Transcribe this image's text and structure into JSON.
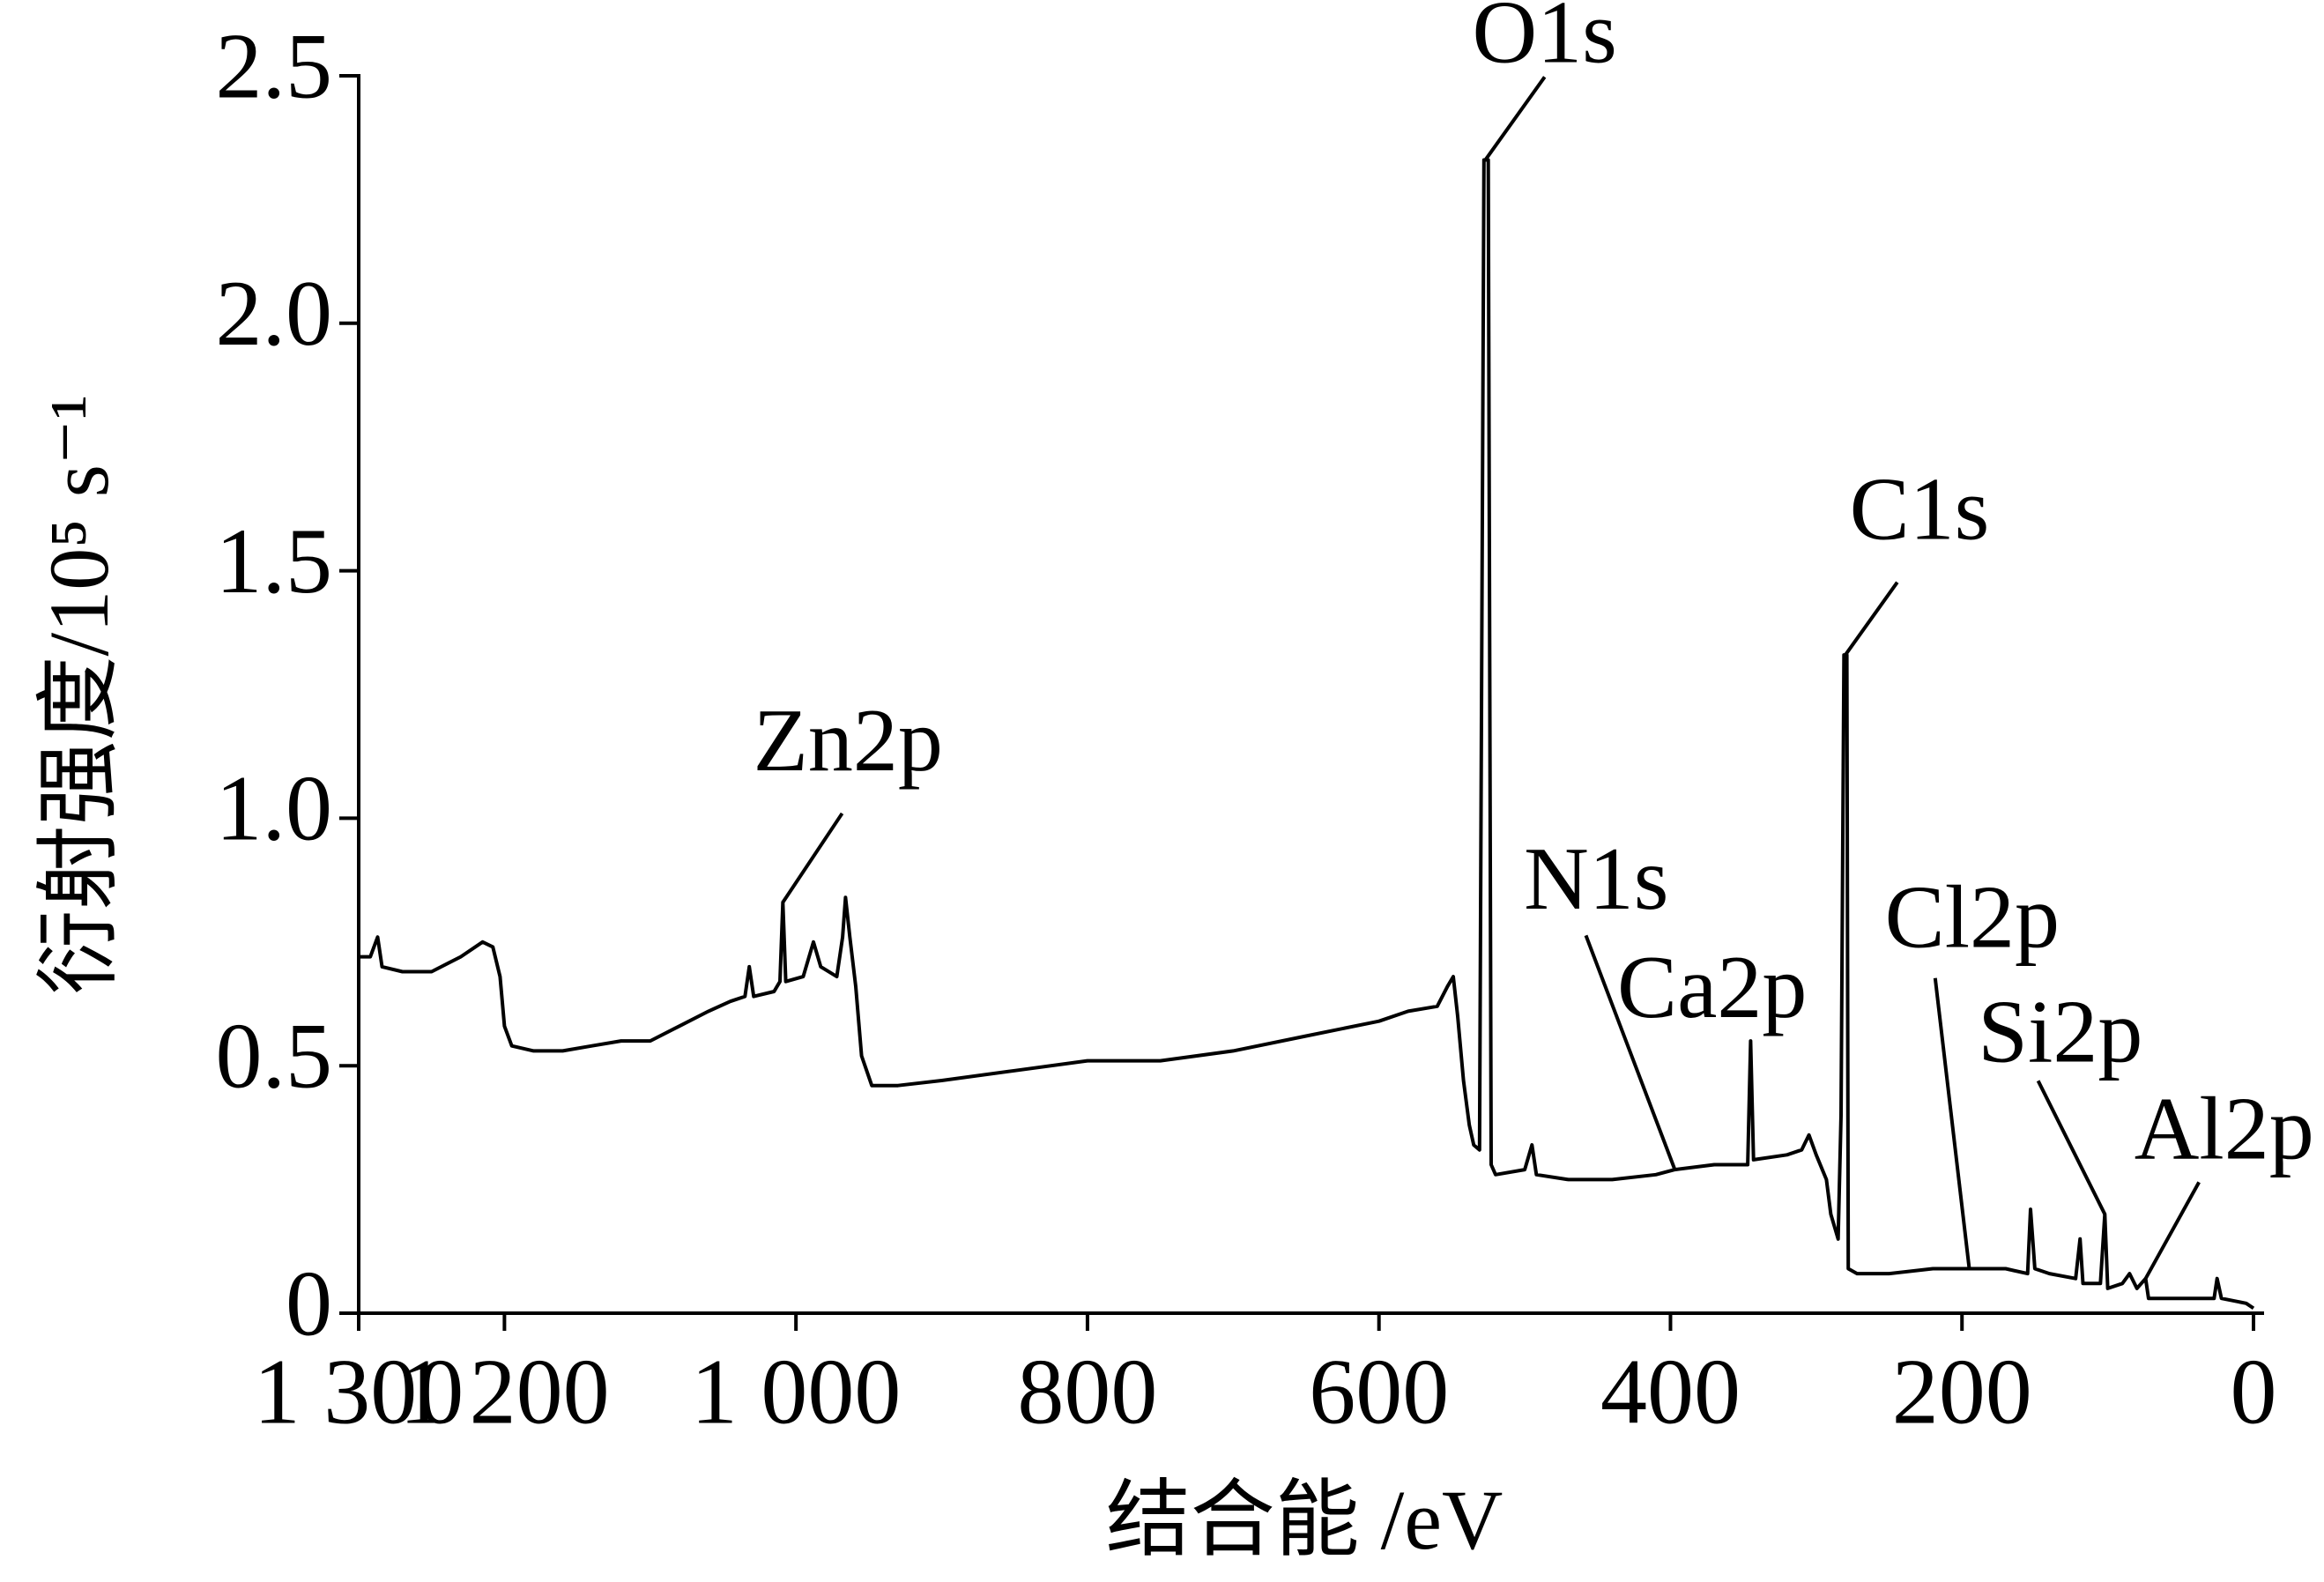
{
  "chart_data": {
    "type": "line",
    "xlabel": "结合能 /eV",
    "ylabel": "衍射强度/10⁵ s⁻¹",
    "x": [
      1300,
      1292,
      1287,
      1284,
      1270,
      1250,
      1230,
      1215,
      1208,
      1203,
      1200,
      1195,
      1180,
      1160,
      1140,
      1120,
      1100,
      1080,
      1060,
      1045,
      1035,
      1032,
      1029,
      1015,
      1011,
      1009,
      1007,
      995,
      988,
      983,
      972,
      968,
      966,
      963,
      959,
      955,
      948,
      930,
      900,
      850,
      800,
      750,
      700,
      650,
      600,
      580,
      560,
      553,
      549,
      546,
      542,
      538,
      535,
      531,
      528,
      525,
      523,
      520,
      500,
      495,
      492,
      470,
      440,
      410,
      397,
      370,
      347,
      345,
      343,
      320,
      310,
      305,
      300,
      293,
      290,
      285,
      283,
      281,
      279,
      278,
      272,
      250,
      220,
      195,
      170,
      155,
      153,
      150,
      140,
      122,
      119,
      117,
      105,
      102,
      100,
      90,
      85,
      80,
      74,
      72,
      50,
      27,
      25,
      22,
      5,
      0
    ],
    "series": [
      {
        "color": "#000000",
        "values": [
          0.72,
          0.72,
          0.76,
          0.7,
          0.69,
          0.69,
          0.72,
          0.75,
          0.74,
          0.68,
          0.58,
          0.54,
          0.53,
          0.53,
          0.54,
          0.55,
          0.55,
          0.58,
          0.61,
          0.63,
          0.64,
          0.7,
          0.64,
          0.65,
          0.67,
          0.83,
          0.67,
          0.68,
          0.75,
          0.7,
          0.68,
          0.76,
          0.84,
          0.76,
          0.66,
          0.52,
          0.46,
          0.46,
          0.47,
          0.49,
          0.51,
          0.51,
          0.53,
          0.56,
          0.59,
          0.61,
          0.62,
          0.66,
          0.68,
          0.6,
          0.47,
          0.38,
          0.34,
          0.33,
          2.33,
          2.33,
          0.3,
          0.28,
          0.29,
          0.34,
          0.28,
          0.27,
          0.27,
          0.28,
          0.29,
          0.3,
          0.3,
          0.55,
          0.31,
          0.32,
          0.33,
          0.36,
          0.32,
          0.27,
          0.2,
          0.15,
          0.4,
          1.33,
          1.33,
          0.09,
          0.08,
          0.08,
          0.09,
          0.09,
          0.09,
          0.08,
          0.21,
          0.09,
          0.08,
          0.07,
          0.15,
          0.06,
          0.06,
          0.2,
          0.05,
          0.06,
          0.08,
          0.05,
          0.07,
          0.03,
          0.03,
          0.03,
          0.07,
          0.03,
          0.02,
          0.01
        ]
      }
    ],
    "xlim": [
      1300,
      0
    ],
    "ylim": [
      0,
      2.5
    ],
    "xticks": [
      {
        "value": 1300,
        "label": "1 300"
      },
      {
        "value": 1200,
        "label": "1 200"
      },
      {
        "value": 1000,
        "label": "1 000"
      },
      800,
      600,
      400,
      200,
      0
    ],
    "yticks": [
      0,
      0.5,
      {
        "value": 1,
        "label": "1.0"
      },
      1.5,
      {
        "value": 2,
        "label": "2.0"
      },
      2.5
    ],
    "annotations": [
      {
        "text": "O1s",
        "x": 527,
        "y": 2.33
      },
      {
        "text": "Zn2p",
        "x": 1009,
        "y": 0.83
      },
      {
        "text": "C1s",
        "x": 280,
        "y": 1.33
      },
      {
        "text": "N1s",
        "x": 397,
        "y": 0.29
      },
      {
        "text": "Ca2p",
        "x": 345,
        "y": 0.55
      },
      {
        "text": "Cl2p",
        "x": 195,
        "y": 0.09
      },
      {
        "text": "Si2p",
        "x": 102,
        "y": 0.2
      },
      {
        "text": "Al2p",
        "x": 74,
        "y": 0.07
      }
    ]
  }
}
